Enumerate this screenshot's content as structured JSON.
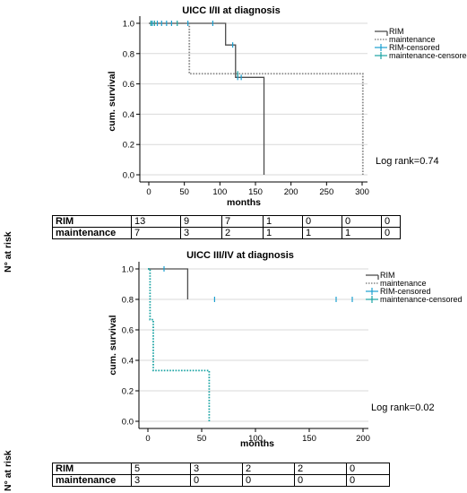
{
  "chart_data": [
    {
      "type": "line",
      "title": "UICC I/II at diagnosis",
      "xlabel": "months",
      "ylabel": "cum. survival",
      "xlim": [
        0,
        300
      ],
      "ylim": [
        0,
        1
      ],
      "xticks": [
        "0",
        "50",
        "100",
        "150",
        "200",
        "250",
        "300"
      ],
      "yticks": [
        "0.0",
        "0.2",
        "0.4",
        "0.6",
        "0.8",
        "1.0"
      ],
      "grid": true,
      "legend_placement": "top-right",
      "legend": [
        "RIM",
        "maintenance",
        "RIM-censored",
        "maintenance-censored"
      ],
      "annotation": "Log rank=0.74",
      "series": [
        {
          "name": "RIM",
          "color": "#4d4d4d",
          "style": "solid",
          "steps": [
            [
              0,
              1.0
            ],
            [
              108,
              0.857
            ],
            [
              122,
              0.643
            ],
            [
              162,
              0.0
            ]
          ],
          "censored": [
            [
              5,
              1.0
            ],
            [
              12,
              1.0
            ],
            [
              18,
              1.0
            ],
            [
              25,
              1.0
            ],
            [
              32,
              1.0
            ],
            [
              55,
              1.0
            ],
            [
              90,
              1.0
            ],
            [
              118,
              0.857
            ],
            [
              125,
              0.643
            ],
            [
              130,
              0.643
            ]
          ]
        },
        {
          "name": "maintenance",
          "color": "#888888",
          "style": "dotted",
          "steps": [
            [
              0,
              1.0
            ],
            [
              57,
              0.667
            ],
            [
              301,
              0.0
            ]
          ],
          "censored": [
            [
              3,
              1.0
            ],
            [
              8,
              1.0
            ],
            [
              40,
              1.0
            ],
            [
              125,
              0.667
            ]
          ]
        }
      ],
      "risk_table": {
        "label": "N° at risk",
        "rows": [
          {
            "name": "RIM",
            "values": [
              "13",
              "9",
              "7",
              "1",
              "0",
              "0",
              "0"
            ]
          },
          {
            "name": "maintenance",
            "values": [
              "7",
              "3",
              "2",
              "1",
              "1",
              "1",
              "0"
            ]
          }
        ]
      }
    },
    {
      "type": "line",
      "title": "UICC III/IV at diagnosis",
      "xlabel": "months",
      "ylabel": "cum. survival",
      "xlim": [
        0,
        200
      ],
      "ylim": [
        0,
        1
      ],
      "xticks": [
        "0",
        "50",
        "100",
        "150",
        "200"
      ],
      "yticks": [
        "0.0",
        "0.2",
        "0.4",
        "0.6",
        "0.8",
        "1.0"
      ],
      "grid": true,
      "legend_placement": "top-right",
      "legend": [
        "RIM",
        "maintenance",
        "RIM-censored",
        "maintenance-censored"
      ],
      "annotation": "Log rank=0.02",
      "series": [
        {
          "name": "RIM",
          "color": "#4d4d4d",
          "style": "solid",
          "steps": [
            [
              0,
              1.0
            ],
            [
              37,
              0.8
            ]
          ],
          "censored": [
            [
              15,
              1.0
            ],
            [
              62,
              0.8
            ],
            [
              175,
              0.8
            ],
            [
              190,
              0.8
            ]
          ]
        },
        {
          "name": "maintenance",
          "color": "#1aa3a3",
          "style": "dotted",
          "steps": [
            [
              0,
              1.0
            ],
            [
              2,
              0.667
            ],
            [
              5,
              0.333
            ],
            [
              57,
              0.0
            ]
          ],
          "censored": []
        }
      ],
      "risk_table": {
        "label": "N° at risk",
        "rows": [
          {
            "name": "RIM",
            "values": [
              "5",
              "3",
              "2",
              "2",
              "0"
            ]
          },
          {
            "name": "maintenance",
            "values": [
              "3",
              "0",
              "0",
              "0",
              "0"
            ]
          }
        ]
      }
    }
  ],
  "colors": {
    "rim_line": "#4d4d4d",
    "maintenance_line": "#888888",
    "censor_mark": "#1a9fd0",
    "maintenance_censor_mark": "#1aa3a3",
    "grid": "#d9d9d9"
  }
}
